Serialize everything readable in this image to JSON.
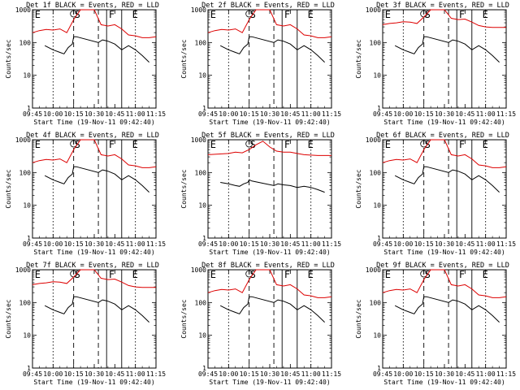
{
  "figure": {
    "type": "multi-panel-line",
    "grid": "3x3",
    "y_axis_label": "Counts/sec",
    "x_axis_label": "Start Time (19-Nov-11 09:42:40)",
    "y_scale": "log",
    "ylim": [
      1,
      1000
    ],
    "y_ticks": [
      "1",
      "10",
      "100",
      "1000"
    ],
    "x_range_minutes": [
      "09:45",
      "11:15"
    ],
    "x_ticks": [
      "09:45",
      "10:00",
      "10:15",
      "10:30",
      "10:45",
      "11:00",
      "11:15"
    ],
    "series_colors": {
      "events": "#000000",
      "lld": "#dd0000"
    },
    "marker_line_style": {
      "dotted": "10:00 and 11:00",
      "dashed": "10:15 and 10:33",
      "solid": "10:39 and 10:50"
    },
    "marker_letters": [
      "E",
      "S",
      "F",
      "E"
    ]
  },
  "chart_data": [
    {
      "type": "line",
      "title": "Det 1f BLACK = Events, RED = LLD",
      "panel": "det1f",
      "series": [
        {
          "name": "Events",
          "color": "#000000",
          "x": [
            "09:54",
            "10:00",
            "10:05",
            "10:08",
            "10:11",
            "10:14",
            "10:15",
            "10:17",
            "10:33",
            "10:36",
            "10:40",
            "10:45",
            "10:50",
            "10:55",
            "11:00",
            "11:05",
            "11:10"
          ],
          "values": [
            80,
            60,
            50,
            45,
            70,
            90,
            150,
            150,
            100,
            120,
            110,
            90,
            60,
            80,
            60,
            40,
            25
          ]
        },
        {
          "name": "LLD",
          "color": "#dd0000",
          "x": [
            "09:45",
            "09:50",
            "09:55",
            "10:00",
            "10:05",
            "10:10",
            "10:15",
            "10:20",
            "10:25",
            "10:30",
            "10:35",
            "10:40",
            "10:45",
            "10:50",
            "10:55",
            "11:00",
            "11:05",
            "11:10",
            "11:15"
          ],
          "values": [
            200,
            230,
            250,
            240,
            260,
            200,
            500,
            1000,
            1000,
            1000,
            350,
            320,
            350,
            260,
            170,
            160,
            140,
            140,
            150
          ]
        }
      ]
    },
    {
      "type": "line",
      "title": "Det 2f BLACK = Events, RED = LLD",
      "panel": "det2f",
      "series": [
        {
          "name": "Events",
          "color": "#000000",
          "x": [
            "09:54",
            "10:00",
            "10:05",
            "10:08",
            "10:11",
            "10:14",
            "10:15",
            "10:17",
            "10:33",
            "10:36",
            "10:40",
            "10:45",
            "10:50",
            "10:55",
            "11:00",
            "11:05",
            "11:10"
          ],
          "values": [
            80,
            60,
            50,
            45,
            70,
            90,
            150,
            150,
            100,
            120,
            110,
            90,
            60,
            80,
            60,
            40,
            25
          ]
        },
        {
          "name": "LLD",
          "color": "#dd0000",
          "x": [
            "09:45",
            "09:50",
            "09:55",
            "10:00",
            "10:05",
            "10:10",
            "10:15",
            "10:20",
            "10:25",
            "10:30",
            "10:35",
            "10:40",
            "10:45",
            "10:50",
            "10:55",
            "11:00",
            "11:05",
            "11:10",
            "11:15"
          ],
          "values": [
            200,
            230,
            250,
            240,
            260,
            200,
            500,
            1000,
            1000,
            1000,
            350,
            320,
            350,
            260,
            170,
            160,
            140,
            140,
            150
          ]
        }
      ]
    },
    {
      "type": "line",
      "title": "Det 3f BLACK = Events, RED = LLD",
      "panel": "det3f",
      "series": [
        {
          "name": "Events",
          "color": "#000000",
          "x": [
            "09:54",
            "10:00",
            "10:05",
            "10:08",
            "10:11",
            "10:14",
            "10:15",
            "10:17",
            "10:33",
            "10:36",
            "10:40",
            "10:45",
            "10:50",
            "10:55",
            "11:00",
            "11:05",
            "11:10"
          ],
          "values": [
            80,
            60,
            50,
            45,
            70,
            90,
            150,
            150,
            100,
            120,
            110,
            90,
            60,
            80,
            60,
            40,
            25
          ]
        },
        {
          "name": "LLD",
          "color": "#dd0000",
          "x": [
            "09:45",
            "09:50",
            "09:55",
            "10:00",
            "10:05",
            "10:10",
            "10:15",
            "10:20",
            "10:25",
            "10:30",
            "10:35",
            "10:40",
            "10:45",
            "10:50",
            "10:55",
            "11:00",
            "11:05",
            "11:10",
            "11:15"
          ],
          "values": [
            350,
            380,
            400,
            430,
            420,
            380,
            600,
            1000,
            1000,
            1000,
            550,
            500,
            520,
            420,
            330,
            300,
            290,
            290,
            290
          ]
        }
      ]
    },
    {
      "type": "line",
      "title": "Det 4f BLACK = Events, RED = LLD",
      "panel": "det4f",
      "series": [
        {
          "name": "Events",
          "color": "#000000",
          "x": [
            "09:54",
            "10:00",
            "10:05",
            "10:08",
            "10:11",
            "10:14",
            "10:15",
            "10:17",
            "10:33",
            "10:36",
            "10:40",
            "10:45",
            "10:50",
            "10:55",
            "11:00",
            "11:05",
            "11:10"
          ],
          "values": [
            80,
            60,
            50,
            45,
            70,
            90,
            150,
            150,
            100,
            120,
            110,
            90,
            60,
            80,
            60,
            40,
            25
          ]
        },
        {
          "name": "LLD",
          "color": "#dd0000",
          "x": [
            "09:45",
            "09:50",
            "09:55",
            "10:00",
            "10:05",
            "10:10",
            "10:15",
            "10:20",
            "10:25",
            "10:30",
            "10:35",
            "10:40",
            "10:45",
            "10:50",
            "10:55",
            "11:00",
            "11:05",
            "11:10",
            "11:15"
          ],
          "values": [
            200,
            230,
            250,
            240,
            260,
            200,
            500,
            1000,
            1000,
            1000,
            350,
            320,
            350,
            260,
            170,
            160,
            140,
            140,
            150
          ]
        }
      ]
    },
    {
      "type": "line",
      "title": "Det 5f BLACK = Events, RED = LLD",
      "panel": "det5f",
      "series": [
        {
          "name": "Events",
          "color": "#000000",
          "x": [
            "09:54",
            "10:00",
            "10:05",
            "10:08",
            "10:11",
            "10:14",
            "10:15",
            "10:17",
            "10:33",
            "10:36",
            "10:40",
            "10:45",
            "10:50",
            "10:55",
            "11:00",
            "11:05",
            "11:10"
          ],
          "values": [
            50,
            45,
            40,
            38,
            45,
            50,
            60,
            55,
            40,
            45,
            42,
            40,
            35,
            38,
            35,
            30,
            25
          ]
        },
        {
          "name": "LLD",
          "color": "#dd0000",
          "x": [
            "09:45",
            "09:50",
            "09:55",
            "10:00",
            "10:05",
            "10:10",
            "10:15",
            "10:20",
            "10:25",
            "10:30",
            "10:35",
            "10:40",
            "10:45",
            "10:50",
            "10:55",
            "11:00",
            "11:05",
            "11:10",
            "11:15"
          ],
          "values": [
            350,
            360,
            370,
            380,
            420,
            400,
            500,
            700,
            900,
            600,
            450,
            420,
            420,
            380,
            350,
            340,
            330,
            330,
            330
          ]
        }
      ]
    },
    {
      "type": "line",
      "title": "Det 6f BLACK = Events, RED = LLD",
      "panel": "det6f",
      "series": [
        {
          "name": "Events",
          "color": "#000000",
          "x": [
            "09:54",
            "10:00",
            "10:05",
            "10:08",
            "10:11",
            "10:14",
            "10:15",
            "10:17",
            "10:33",
            "10:36",
            "10:40",
            "10:45",
            "10:50",
            "10:55",
            "11:00",
            "11:05",
            "11:10"
          ],
          "values": [
            80,
            60,
            50,
            45,
            70,
            90,
            150,
            150,
            100,
            120,
            110,
            90,
            60,
            80,
            60,
            40,
            25
          ]
        },
        {
          "name": "LLD",
          "color": "#dd0000",
          "x": [
            "09:45",
            "09:50",
            "09:55",
            "10:00",
            "10:05",
            "10:10",
            "10:15",
            "10:20",
            "10:25",
            "10:30",
            "10:35",
            "10:40",
            "10:45",
            "10:50",
            "10:55",
            "11:00",
            "11:05",
            "11:10",
            "11:15"
          ],
          "values": [
            200,
            230,
            250,
            240,
            260,
            200,
            500,
            1000,
            1000,
            1000,
            350,
            320,
            350,
            260,
            170,
            160,
            140,
            140,
            150
          ]
        }
      ]
    },
    {
      "type": "line",
      "title": "Det 7f BLACK = Events, RED = LLD",
      "panel": "det7f",
      "series": [
        {
          "name": "Events",
          "color": "#000000",
          "x": [
            "09:54",
            "10:00",
            "10:05",
            "10:08",
            "10:11",
            "10:14",
            "10:15",
            "10:17",
            "10:33",
            "10:36",
            "10:40",
            "10:45",
            "10:50",
            "10:55",
            "11:00",
            "11:05",
            "11:10"
          ],
          "values": [
            80,
            60,
            50,
            45,
            70,
            90,
            150,
            150,
            100,
            120,
            110,
            90,
            60,
            80,
            60,
            40,
            25
          ]
        },
        {
          "name": "LLD",
          "color": "#dd0000",
          "x": [
            "09:45",
            "09:50",
            "09:55",
            "10:00",
            "10:05",
            "10:10",
            "10:15",
            "10:20",
            "10:25",
            "10:30",
            "10:35",
            "10:40",
            "10:45",
            "10:50",
            "10:55",
            "11:00",
            "11:05",
            "11:10",
            "11:15"
          ],
          "values": [
            350,
            380,
            400,
            430,
            420,
            380,
            600,
            1000,
            1000,
            1000,
            550,
            500,
            520,
            420,
            330,
            300,
            290,
            290,
            290
          ]
        }
      ]
    },
    {
      "type": "line",
      "title": "Det 8f BLACK = Events, RED = LLD",
      "panel": "det8f",
      "series": [
        {
          "name": "Events",
          "color": "#000000",
          "x": [
            "09:54",
            "10:00",
            "10:05",
            "10:08",
            "10:11",
            "10:14",
            "10:15",
            "10:17",
            "10:33",
            "10:36",
            "10:40",
            "10:45",
            "10:50",
            "10:55",
            "11:00",
            "11:05",
            "11:10"
          ],
          "values": [
            80,
            60,
            50,
            45,
            70,
            90,
            150,
            150,
            100,
            120,
            110,
            90,
            60,
            80,
            60,
            40,
            25
          ]
        },
        {
          "name": "LLD",
          "color": "#dd0000",
          "x": [
            "09:45",
            "09:50",
            "09:55",
            "10:00",
            "10:05",
            "10:10",
            "10:15",
            "10:20",
            "10:25",
            "10:30",
            "10:35",
            "10:40",
            "10:45",
            "10:50",
            "10:55",
            "11:00",
            "11:05",
            "11:10",
            "11:15"
          ],
          "values": [
            200,
            230,
            250,
            240,
            260,
            200,
            500,
            1000,
            1000,
            1000,
            350,
            320,
            350,
            260,
            170,
            160,
            140,
            140,
            150
          ]
        }
      ]
    },
    {
      "type": "line",
      "title": "Det 9f BLACK = Events, RED = LLD",
      "panel": "det9f",
      "series": [
        {
          "name": "Events",
          "color": "#000000",
          "x": [
            "09:54",
            "10:00",
            "10:05",
            "10:08",
            "10:11",
            "10:14",
            "10:15",
            "10:17",
            "10:33",
            "10:36",
            "10:40",
            "10:45",
            "10:50",
            "10:55",
            "11:00",
            "11:05",
            "11:10"
          ],
          "values": [
            80,
            60,
            50,
            45,
            70,
            90,
            150,
            150,
            100,
            120,
            110,
            90,
            60,
            80,
            60,
            40,
            25
          ]
        },
        {
          "name": "LLD",
          "color": "#dd0000",
          "x": [
            "09:45",
            "09:50",
            "09:55",
            "10:00",
            "10:05",
            "10:10",
            "10:15",
            "10:20",
            "10:25",
            "10:30",
            "10:35",
            "10:40",
            "10:45",
            "10:50",
            "10:55",
            "11:00",
            "11:05",
            "11:10",
            "11:15"
          ],
          "values": [
            200,
            230,
            250,
            240,
            260,
            200,
            500,
            1000,
            1000,
            1000,
            350,
            320,
            350,
            260,
            170,
            160,
            140,
            140,
            150
          ]
        }
      ]
    }
  ]
}
